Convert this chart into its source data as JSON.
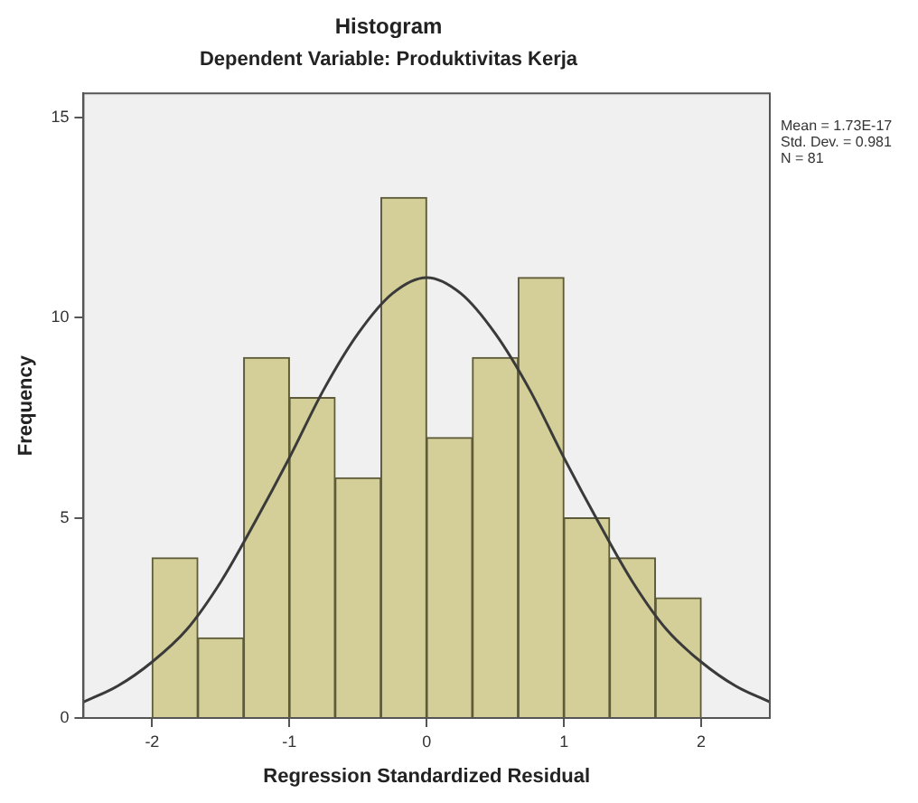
{
  "chart_data": {
    "type": "histogram",
    "title": "Histogram",
    "subtitle": "Dependent Variable: Produktivitas Kerja",
    "xlabel": "Regression Standardized Residual",
    "ylabel": "Frequency",
    "bins": [
      -2,
      -1.667,
      -1.333,
      -1,
      -0.667,
      -0.333,
      0,
      0.333,
      0.667,
      1,
      1.333,
      1.667,
      2
    ],
    "values": [
      4,
      2,
      9,
      8,
      6,
      13,
      7,
      9,
      11,
      5,
      4,
      3
    ],
    "color": "#d4cf98",
    "series": [
      {
        "type": "line",
        "color": "#3a3a3a",
        "x": [
          -2.5,
          -2.25,
          -2,
          -1.75,
          -1.5,
          -1.25,
          -1,
          -0.75,
          -0.5,
          -0.25,
          0,
          0.25,
          0.5,
          0.75,
          1,
          1.25,
          1.5,
          1.75,
          2,
          2.25,
          2.5
        ],
        "values": [
          0.4,
          0.8,
          1.4,
          2.2,
          3.4,
          4.9,
          6.5,
          8.2,
          9.6,
          10.6,
          11,
          10.6,
          9.6,
          8.2,
          6.5,
          4.9,
          3.4,
          2.2,
          1.4,
          0.8,
          0.4
        ]
      }
    ],
    "xlim": [
      -2.5,
      2.5
    ],
    "xticks": [
      -2,
      -1,
      0,
      1,
      2
    ],
    "ylim": [
      0,
      15.6
    ],
    "yticks": [
      0,
      5,
      10,
      15
    ],
    "grid": false,
    "legend": false,
    "marker": "none",
    "line_style": "solid",
    "annotations": [
      "Mean = 1.73E-17",
      "Std. Dev. = 0.981",
      "N = 81"
    ]
  }
}
